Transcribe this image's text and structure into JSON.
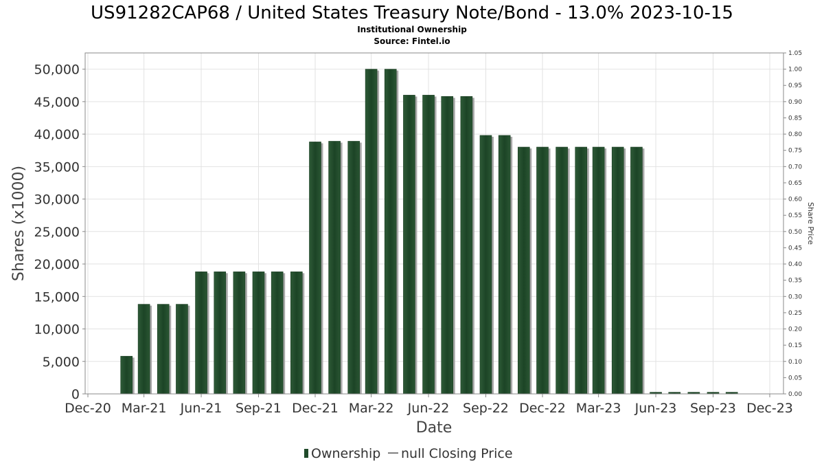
{
  "chart_data": {
    "type": "bar",
    "title": "US91282CAP68 / United States Treasury Note/Bond - 13.0% 2023-10-15",
    "subtitle_lines": [
      "Institutional Ownership",
      "Source: Fintel.io"
    ],
    "xlabel": "Date",
    "ylabel": "Shares (x1000)",
    "y2label": "Share Price",
    "ylim": [
      0,
      52500
    ],
    "y_ticks": [
      "0",
      "5,000",
      "10,000",
      "15,000",
      "20,000",
      "25,000",
      "30,000",
      "35,000",
      "40,000",
      "45,000",
      "50,000"
    ],
    "y2lim": [
      0,
      1.05
    ],
    "y2_ticks": [
      "0.00",
      "0.05",
      "0.10",
      "0.15",
      "0.20",
      "0.25",
      "0.30",
      "0.35",
      "0.40",
      "0.45",
      "0.50",
      "0.55",
      "0.60",
      "0.65",
      "0.70",
      "0.75",
      "0.80",
      "0.85",
      "0.90",
      "0.95",
      "1.00",
      "1.05"
    ],
    "xlim": [
      "2020-12-01",
      "2023-12-01"
    ],
    "x_ticks": [
      "Dec-20",
      "Mar-21",
      "Jun-21",
      "Sep-21",
      "Dec-21",
      "Mar-22",
      "Jun-22",
      "Sep-22",
      "Dec-22",
      "Mar-23",
      "Jun-23",
      "Sep-23",
      "Dec-23"
    ],
    "x_tick_dates": [
      "2020-12-01",
      "2021-03-01",
      "2021-06-01",
      "2021-09-01",
      "2021-12-01",
      "2022-03-01",
      "2022-06-01",
      "2022-09-01",
      "2022-12-01",
      "2023-03-01",
      "2023-06-01",
      "2023-09-01",
      "2023-12-01"
    ],
    "grid": true,
    "legend_position": "bottom",
    "legend": [
      "Ownership",
      "null Closing Price"
    ],
    "series": [
      {
        "name": "Ownership",
        "color": "#1f4a2a",
        "points": [
          {
            "x": "2021-02-01",
            "y": 5800
          },
          {
            "x": "2021-03-01",
            "y": 13800
          },
          {
            "x": "2021-04-01",
            "y": 13800
          },
          {
            "x": "2021-05-01",
            "y": 13800
          },
          {
            "x": "2021-06-01",
            "y": 18800
          },
          {
            "x": "2021-07-01",
            "y": 18800
          },
          {
            "x": "2021-08-01",
            "y": 18800
          },
          {
            "x": "2021-09-01",
            "y": 18800
          },
          {
            "x": "2021-10-01",
            "y": 18800
          },
          {
            "x": "2021-11-01",
            "y": 18800
          },
          {
            "x": "2021-12-01",
            "y": 38800
          },
          {
            "x": "2022-01-01",
            "y": 38900
          },
          {
            "x": "2022-02-01",
            "y": 38900
          },
          {
            "x": "2022-03-01",
            "y": 50000
          },
          {
            "x": "2022-04-01",
            "y": 50000
          },
          {
            "x": "2022-05-01",
            "y": 46000
          },
          {
            "x": "2022-06-01",
            "y": 46000
          },
          {
            "x": "2022-07-01",
            "y": 45800
          },
          {
            "x": "2022-08-01",
            "y": 45800
          },
          {
            "x": "2022-09-01",
            "y": 39800
          },
          {
            "x": "2022-10-01",
            "y": 39800
          },
          {
            "x": "2022-11-01",
            "y": 38000
          },
          {
            "x": "2022-12-01",
            "y": 38000
          },
          {
            "x": "2023-01-01",
            "y": 38000
          },
          {
            "x": "2023-02-01",
            "y": 38000
          },
          {
            "x": "2023-03-01",
            "y": 38000
          },
          {
            "x": "2023-04-01",
            "y": 38000
          },
          {
            "x": "2023-05-01",
            "y": 38000
          },
          {
            "x": "2023-06-01",
            "y": 250
          },
          {
            "x": "2023-07-01",
            "y": 250
          },
          {
            "x": "2023-08-01",
            "y": 250
          },
          {
            "x": "2023-09-01",
            "y": 250
          },
          {
            "x": "2023-10-01",
            "y": 250
          }
        ]
      }
    ]
  }
}
